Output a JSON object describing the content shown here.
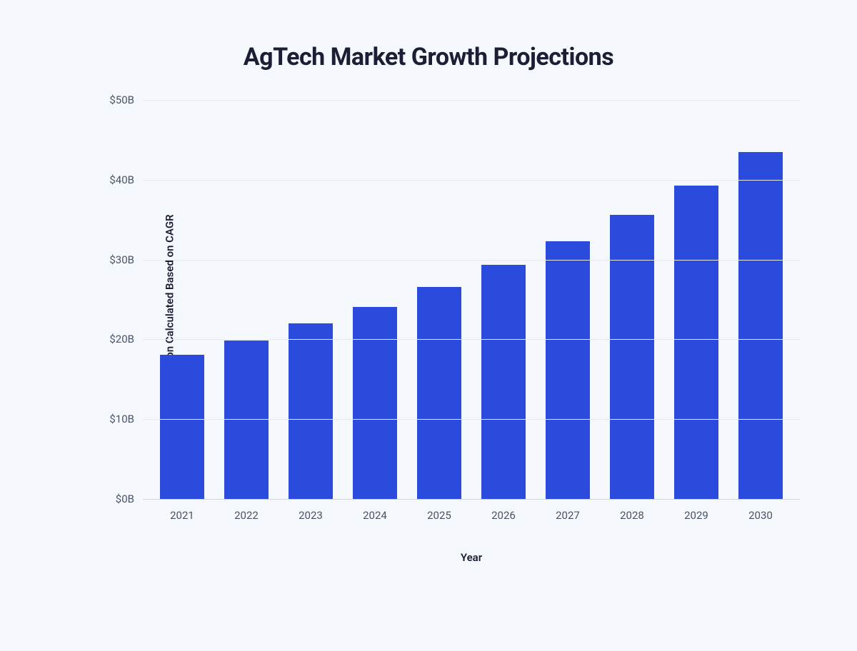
{
  "chart": {
    "type": "bar",
    "title": "AgTech Market Growth Projections",
    "xlabel": "Year",
    "ylabel": "Market Valuation Calculated Based on CAGR",
    "background_color": "#f5f8fc",
    "bar_color": "#2a4bdb",
    "grid_color": "#e4e7ec",
    "axis_color": "#d0d5dd",
    "title_color": "#1a1f36",
    "tick_label_color": "#475467",
    "axis_label_color": "#1a1f36",
    "title_fontsize": 34,
    "tick_fontsize": 15,
    "axis_label_fontsize": 15,
    "ylim": [
      0,
      50
    ],
    "ytick_step": 10,
    "ytick_labels": [
      "$0B",
      "$10B",
      "$20B",
      "$30B",
      "$40B",
      "$50B"
    ],
    "categories": [
      "2021",
      "2022",
      "2023",
      "2024",
      "2025",
      "2026",
      "2027",
      "2028",
      "2029",
      "2030"
    ],
    "values": [
      18.1,
      19.9,
      22.0,
      24.1,
      26.6,
      29.3,
      32.3,
      35.6,
      39.3,
      43.5
    ],
    "bar_width": 0.68
  }
}
